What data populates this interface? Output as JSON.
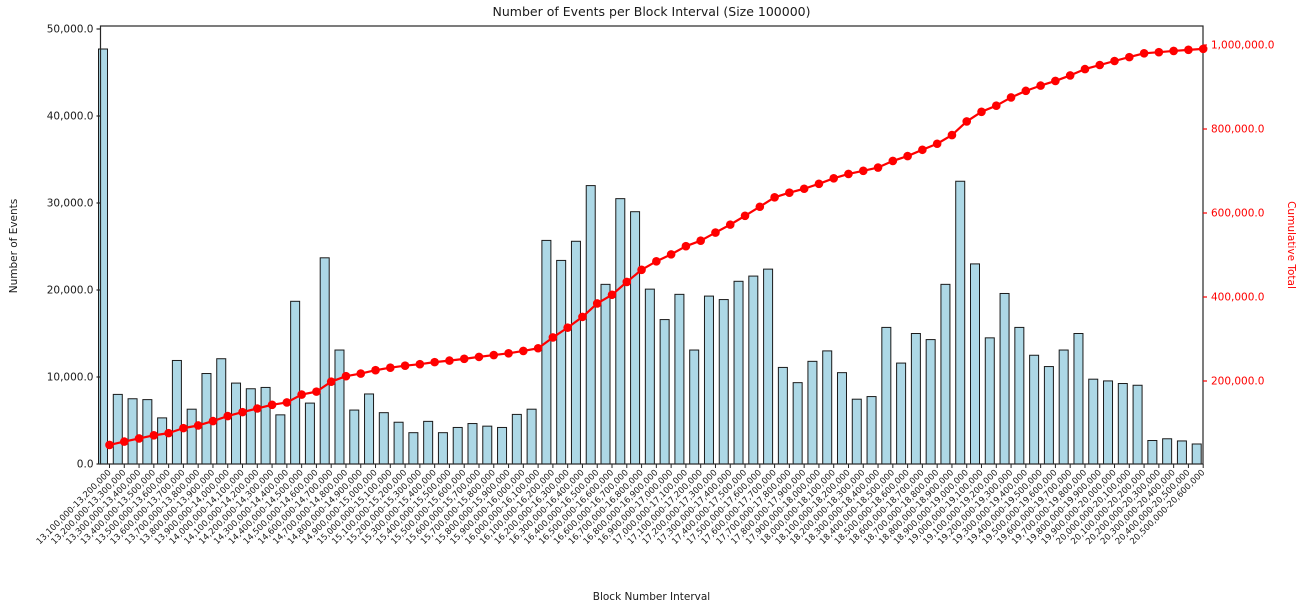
{
  "chart_data": {
    "type": "bar",
    "title": "Number of Events per Block Interval (Size 100000)",
    "xlabel": "Block Number Interval",
    "ylabel": "Number of Events",
    "ylabel_right": "Cumulative Total",
    "legend": "none",
    "grid": false,
    "ylim_left": [
      0,
      50000
    ],
    "ylim_right": [
      0,
      1045000
    ],
    "y_ticks_left_labels": [
      "0.0",
      "10,000.0",
      "20,000.0",
      "30,000.0",
      "40,000.0",
      "50,000.0"
    ],
    "y_ticks_left_values": [
      0,
      10000,
      20000,
      30000,
      40000,
      50000
    ],
    "y_ticks_right_labels": [
      "200,000.0",
      "400,000.0",
      "600,000.0",
      "800,000.0",
      "1,000,000.0"
    ],
    "y_ticks_right_values": [
      200000,
      400000,
      600000,
      800000,
      1000000
    ],
    "colors": {
      "bar_fill": "#ADD8E6",
      "bar_edge": "#1a1a1a",
      "line": "#ff0000",
      "axis": "#262626",
      "tick_text": "#1a1a1a",
      "right_axis_text": "#ff0000"
    },
    "categories": [
      "13,100,000-13,200,000",
      "13,200,000-13,300,000",
      "13,300,000-13,400,000",
      "13,400,000-13,500,000",
      "13,500,000-13,600,000",
      "13,600,000-13,700,000",
      "13,700,000-13,800,000",
      "13,800,000-13,900,000",
      "13,900,000-14,000,000",
      "14,000,000-14,100,000",
      "14,100,000-14,200,000",
      "14,200,000-14,300,000",
      "14,300,000-14,400,000",
      "14,400,000-14,500,000",
      "14,500,000-14,600,000",
      "14,600,000-14,700,000",
      "14,700,000-14,800,000",
      "14,800,000-14,900,000",
      "14,900,000-15,000,000",
      "15,000,000-15,100,000",
      "15,100,000-15,200,000",
      "15,200,000-15,300,000",
      "15,300,000-15,400,000",
      "15,400,000-15,500,000",
      "15,500,000-15,600,000",
      "15,600,000-15,700,000",
      "15,700,000-15,800,000",
      "15,800,000-15,900,000",
      "15,900,000-16,000,000",
      "16,000,000-16,100,000",
      "16,100,000-16,200,000",
      "16,200,000-16,300,000",
      "16,300,000-16,400,000",
      "16,400,000-16,500,000",
      "16,500,000-16,600,000",
      "16,600,000-16,700,000",
      "16,700,000-16,800,000",
      "16,800,000-16,900,000",
      "16,900,000-17,000,000",
      "17,000,000-17,100,000",
      "17,100,000-17,200,000",
      "17,200,000-17,300,000",
      "17,300,000-17,400,000",
      "17,400,000-17,500,000",
      "17,500,000-17,600,000",
      "17,600,000-17,700,000",
      "17,700,000-17,800,000",
      "17,800,000-17,900,000",
      "17,900,000-18,000,000",
      "18,000,000-18,100,000",
      "18,100,000-18,200,000",
      "18,200,000-18,300,000",
      "18,300,000-18,400,000",
      "18,400,000-18,500,000",
      "18,500,000-18,600,000",
      "18,600,000-18,700,000",
      "18,700,000-18,800,000",
      "18,800,000-18,900,000",
      "18,900,000-19,000,000",
      "19,000,000-19,100,000",
      "19,100,000-19,200,000",
      "19,200,000-19,300,000",
      "19,300,000-19,400,000",
      "19,400,000-19,500,000",
      "19,500,000-19,600,000",
      "19,600,000-19,700,000",
      "19,700,000-19,800,000",
      "19,800,000-19,900,000",
      "19,900,000-20,000,000",
      "20,000,000-20,100,000",
      "20,100,000-20,200,000",
      "20,200,000-20,300,000",
      "20,300,000-20,400,000",
      "20,400,000-20,500,000",
      "20,500,000-20,600,000"
    ],
    "series": [
      {
        "name": "Number of Events",
        "type": "bar",
        "axis": "left",
        "values": [
          47700,
          8000,
          7500,
          7400,
          5300,
          11900,
          6300,
          10400,
          12100,
          9300,
          8650,
          8800,
          5650,
          18700,
          7000,
          23700,
          13100,
          6200,
          8050,
          5900,
          4800,
          3600,
          4900,
          3600,
          4200,
          4650,
          4350,
          4200,
          5700,
          6300,
          25700,
          23400,
          25600,
          32000,
          20650,
          30500,
          29000,
          20100,
          16600,
          19500,
          13100,
          19300,
          18900,
          21000,
          21600,
          22400,
          11100,
          9350,
          11800,
          13000,
          10500,
          7450,
          7750,
          15700,
          11600,
          15000,
          14300,
          20650,
          32500,
          23000,
          14500,
          19600,
          15700,
          12500,
          11200,
          13100,
          15000,
          9750,
          9550,
          9250,
          9050,
          2700,
          2900,
          2650,
          2300
        ]
      },
      {
        "name": "Cumulative Total",
        "type": "line",
        "axis": "right",
        "marker": "circle",
        "values": [
          47700,
          55700,
          63200,
          70600,
          75900,
          87800,
          94100,
          104500,
          116600,
          125900,
          134550,
          143350,
          149000,
          167700,
          174700,
          198400,
          211500,
          217700,
          225750,
          231650,
          236450,
          240050,
          244950,
          248550,
          252750,
          257400,
          261750,
          265950,
          271650,
          277950,
          303650,
          327050,
          352650,
          384650,
          405300,
          435800,
          464800,
          484900,
          501500,
          521000,
          534100,
          553400,
          572300,
          593300,
          614900,
          637300,
          648400,
          657750,
          669550,
          682550,
          693050,
          700500,
          708250,
          723950,
          735550,
          750550,
          764850,
          785500,
          818000,
          841000,
          855500,
          875100,
          890800,
          903300,
          914500,
          927600,
          942600,
          952350,
          961900,
          971150,
          980200,
          982900,
          985800,
          988450,
          990750
        ]
      }
    ]
  }
}
